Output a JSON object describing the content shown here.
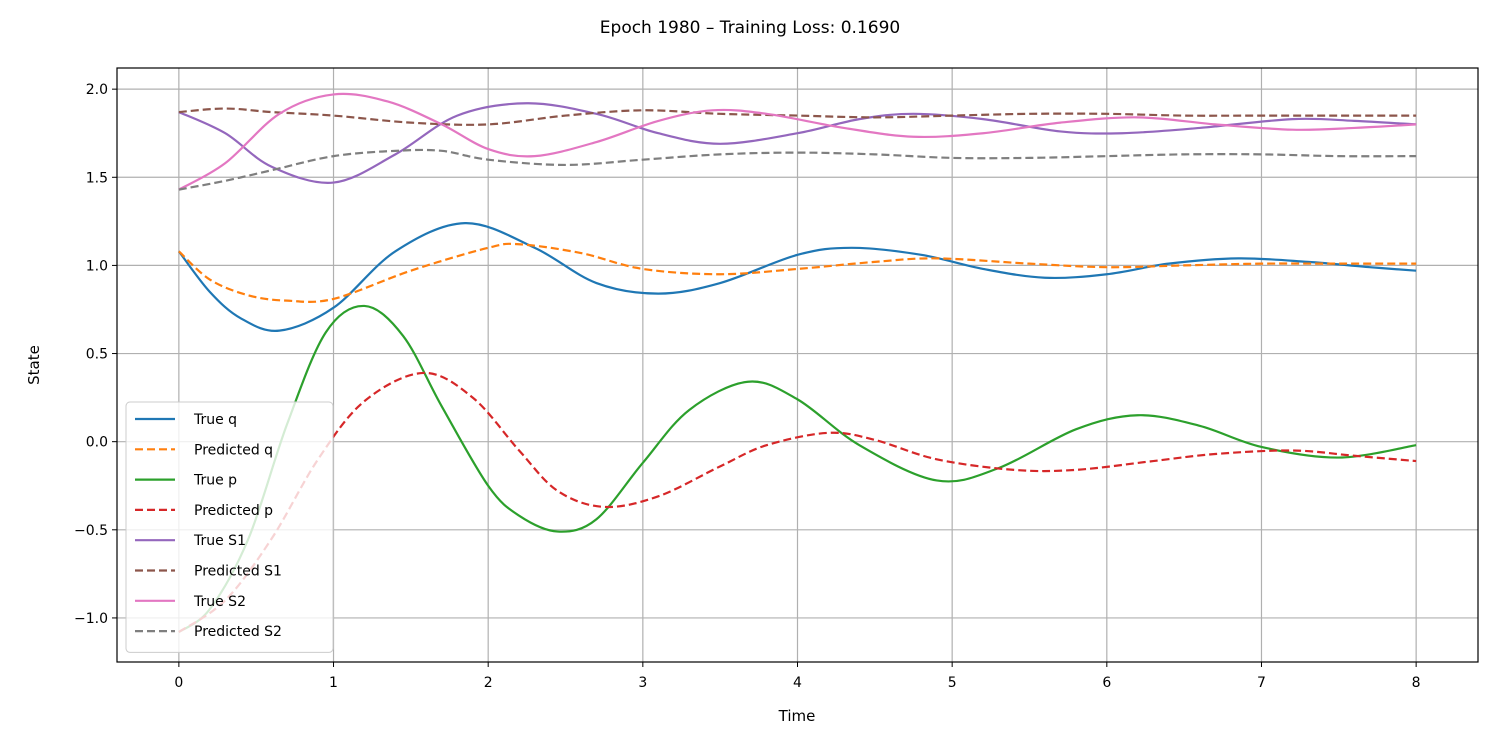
{
  "chart_data": {
    "type": "line",
    "title": "Epoch 1980 – Training Loss: 0.1690",
    "xlabel": "Time",
    "ylabel": "State",
    "xlim": [
      -0.4,
      8.4
    ],
    "ylim": [
      -1.25,
      2.12
    ],
    "xticks": [
      0,
      1,
      2,
      3,
      4,
      5,
      6,
      7,
      8
    ],
    "yticks": [
      -1.0,
      -0.5,
      0.0,
      0.5,
      1.0,
      1.5,
      2.0
    ],
    "ytick_labels": [
      "−1.0",
      "−0.5",
      "0.0",
      "0.5",
      "1.0",
      "1.5",
      "2.0"
    ],
    "grid": true,
    "legend_position": "lower-left",
    "series": [
      {
        "name": "True q",
        "color": "#1f77b4",
        "dashed": false,
        "x": [
          0,
          0.2,
          0.4,
          0.65,
          1.0,
          1.4,
          1.85,
          2.3,
          2.7,
          3.1,
          3.5,
          4.0,
          4.35,
          4.8,
          5.2,
          5.6,
          6.0,
          6.4,
          6.85,
          7.3,
          7.7,
          8.0
        ],
        "y": [
          1.08,
          0.85,
          0.7,
          0.63,
          0.76,
          1.08,
          1.24,
          1.1,
          0.9,
          0.84,
          0.9,
          1.06,
          1.1,
          1.06,
          0.98,
          0.93,
          0.95,
          1.01,
          1.04,
          1.02,
          0.99,
          0.97
        ]
      },
      {
        "name": "Predicted q",
        "color": "#ff7f0e",
        "dashed": true,
        "x": [
          0,
          0.2,
          0.45,
          0.7,
          1.0,
          1.5,
          2.0,
          2.2,
          2.6,
          3.0,
          3.5,
          4.0,
          4.5,
          4.9,
          5.5,
          6.0,
          6.5,
          7.0,
          7.5,
          8.0
        ],
        "y": [
          1.08,
          0.92,
          0.83,
          0.8,
          0.81,
          0.97,
          1.1,
          1.12,
          1.07,
          0.98,
          0.95,
          0.98,
          1.02,
          1.04,
          1.01,
          0.99,
          1.0,
          1.01,
          1.01,
          1.01
        ]
      },
      {
        "name": "True p",
        "color": "#2ca02c",
        "dashed": false,
        "x": [
          0,
          0.2,
          0.45,
          0.7,
          0.95,
          1.2,
          1.45,
          1.7,
          2.0,
          2.2,
          2.45,
          2.7,
          3.0,
          3.3,
          3.68,
          4.0,
          4.4,
          4.9,
          5.3,
          5.8,
          6.2,
          6.6,
          7.0,
          7.5,
          8.0
        ],
        "y": [
          -1.08,
          -0.95,
          -0.55,
          0.1,
          0.62,
          0.77,
          0.6,
          0.2,
          -0.25,
          -0.42,
          -0.51,
          -0.44,
          -0.12,
          0.18,
          0.34,
          0.24,
          -0.02,
          -0.22,
          -0.15,
          0.07,
          0.15,
          0.09,
          -0.03,
          -0.09,
          -0.02
        ]
      },
      {
        "name": "Predicted p",
        "color": "#d62728",
        "dashed": true,
        "x": [
          0,
          0.3,
          0.6,
          0.9,
          1.2,
          1.58,
          1.9,
          2.2,
          2.45,
          2.75,
          3.1,
          3.5,
          3.8,
          4.2,
          4.5,
          4.9,
          5.4,
          5.8,
          6.3,
          6.7,
          7.2,
          7.6,
          8.0
        ],
        "y": [
          -1.08,
          -0.9,
          -0.55,
          -0.1,
          0.23,
          0.39,
          0.25,
          -0.05,
          -0.28,
          -0.37,
          -0.31,
          -0.14,
          -0.02,
          0.05,
          0.01,
          -0.1,
          -0.16,
          -0.16,
          -0.11,
          -0.07,
          -0.05,
          -0.08,
          -0.11
        ]
      },
      {
        "name": "True S1",
        "color": "#9467bd",
        "dashed": false,
        "x": [
          0,
          0.3,
          0.6,
          1.0,
          1.4,
          1.8,
          2.25,
          2.7,
          3.1,
          3.5,
          4.0,
          4.4,
          4.75,
          5.2,
          5.7,
          6.1,
          6.6,
          7.2,
          7.6,
          8.0
        ],
        "y": [
          1.87,
          1.75,
          1.56,
          1.47,
          1.63,
          1.85,
          1.92,
          1.86,
          1.75,
          1.69,
          1.75,
          1.83,
          1.86,
          1.83,
          1.76,
          1.75,
          1.78,
          1.83,
          1.82,
          1.8
        ]
      },
      {
        "name": "Predicted S1",
        "color": "#8c564b",
        "dashed": true,
        "x": [
          0,
          0.3,
          0.6,
          1.0,
          1.5,
          2.0,
          2.5,
          3.0,
          3.5,
          4.0,
          4.5,
          5.0,
          5.5,
          6.0,
          6.5,
          7.0,
          7.5,
          8.0
        ],
        "y": [
          1.87,
          1.89,
          1.87,
          1.85,
          1.81,
          1.8,
          1.85,
          1.88,
          1.86,
          1.85,
          1.84,
          1.85,
          1.86,
          1.86,
          1.85,
          1.85,
          1.85,
          1.85
        ]
      },
      {
        "name": "True S2",
        "color": "#e377c2",
        "dashed": false,
        "x": [
          0,
          0.3,
          0.65,
          1.0,
          1.35,
          1.7,
          2.0,
          2.3,
          2.7,
          3.1,
          3.45,
          3.8,
          4.3,
          4.75,
          5.2,
          5.7,
          6.2,
          6.7,
          7.2,
          7.6,
          8.0
        ],
        "y": [
          1.43,
          1.58,
          1.86,
          1.97,
          1.93,
          1.8,
          1.66,
          1.62,
          1.7,
          1.82,
          1.88,
          1.86,
          1.78,
          1.73,
          1.75,
          1.81,
          1.84,
          1.8,
          1.77,
          1.78,
          1.8
        ]
      },
      {
        "name": "Predicted S2",
        "color": "#7f7f7f",
        "dashed": true,
        "x": [
          0,
          0.3,
          0.6,
          1.0,
          1.4,
          1.7,
          2.0,
          2.5,
          3.0,
          3.5,
          4.0,
          4.5,
          5.0,
          5.5,
          6.0,
          6.5,
          7.0,
          7.5,
          8.0
        ],
        "y": [
          1.43,
          1.48,
          1.54,
          1.62,
          1.65,
          1.65,
          1.6,
          1.57,
          1.6,
          1.63,
          1.64,
          1.63,
          1.61,
          1.61,
          1.62,
          1.63,
          1.63,
          1.62,
          1.62
        ]
      }
    ]
  }
}
